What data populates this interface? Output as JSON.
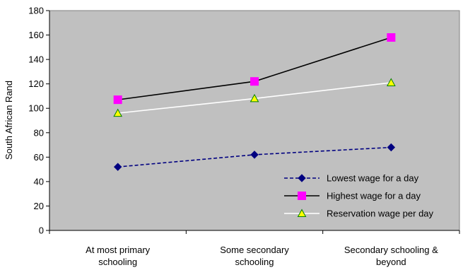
{
  "chart_data": {
    "type": "line",
    "title": "",
    "xlabel": "",
    "ylabel": "South African Rand",
    "ylim": [
      0,
      180
    ],
    "yticks": [
      0,
      20,
      40,
      60,
      80,
      100,
      120,
      140,
      160,
      180
    ],
    "grid": false,
    "plot_background": "#c0c0c0",
    "legend_position": "bottom-right, inside plot",
    "categories": [
      [
        "At most primary",
        "schooling"
      ],
      [
        "Some secondary",
        "schooling"
      ],
      [
        "Secondary schooling &",
        "beyond"
      ]
    ],
    "series": [
      {
        "name": "Lowest wage for a day",
        "values": [
          52,
          62,
          68
        ],
        "line_color": "#000080",
        "line_style": "dashed",
        "marker": "diamond",
        "marker_color": "#000080"
      },
      {
        "name": "Highest wage for a day",
        "values": [
          107,
          122,
          158
        ],
        "line_color": "#000000",
        "line_style": "solid",
        "marker": "square",
        "marker_color": "#ff00ff"
      },
      {
        "name": "Reservation wage per day",
        "values": [
          96,
          108,
          121
        ],
        "line_color": "#ffffff",
        "line_style": "solid",
        "marker": "triangle",
        "marker_color": "#ffff00"
      }
    ]
  }
}
